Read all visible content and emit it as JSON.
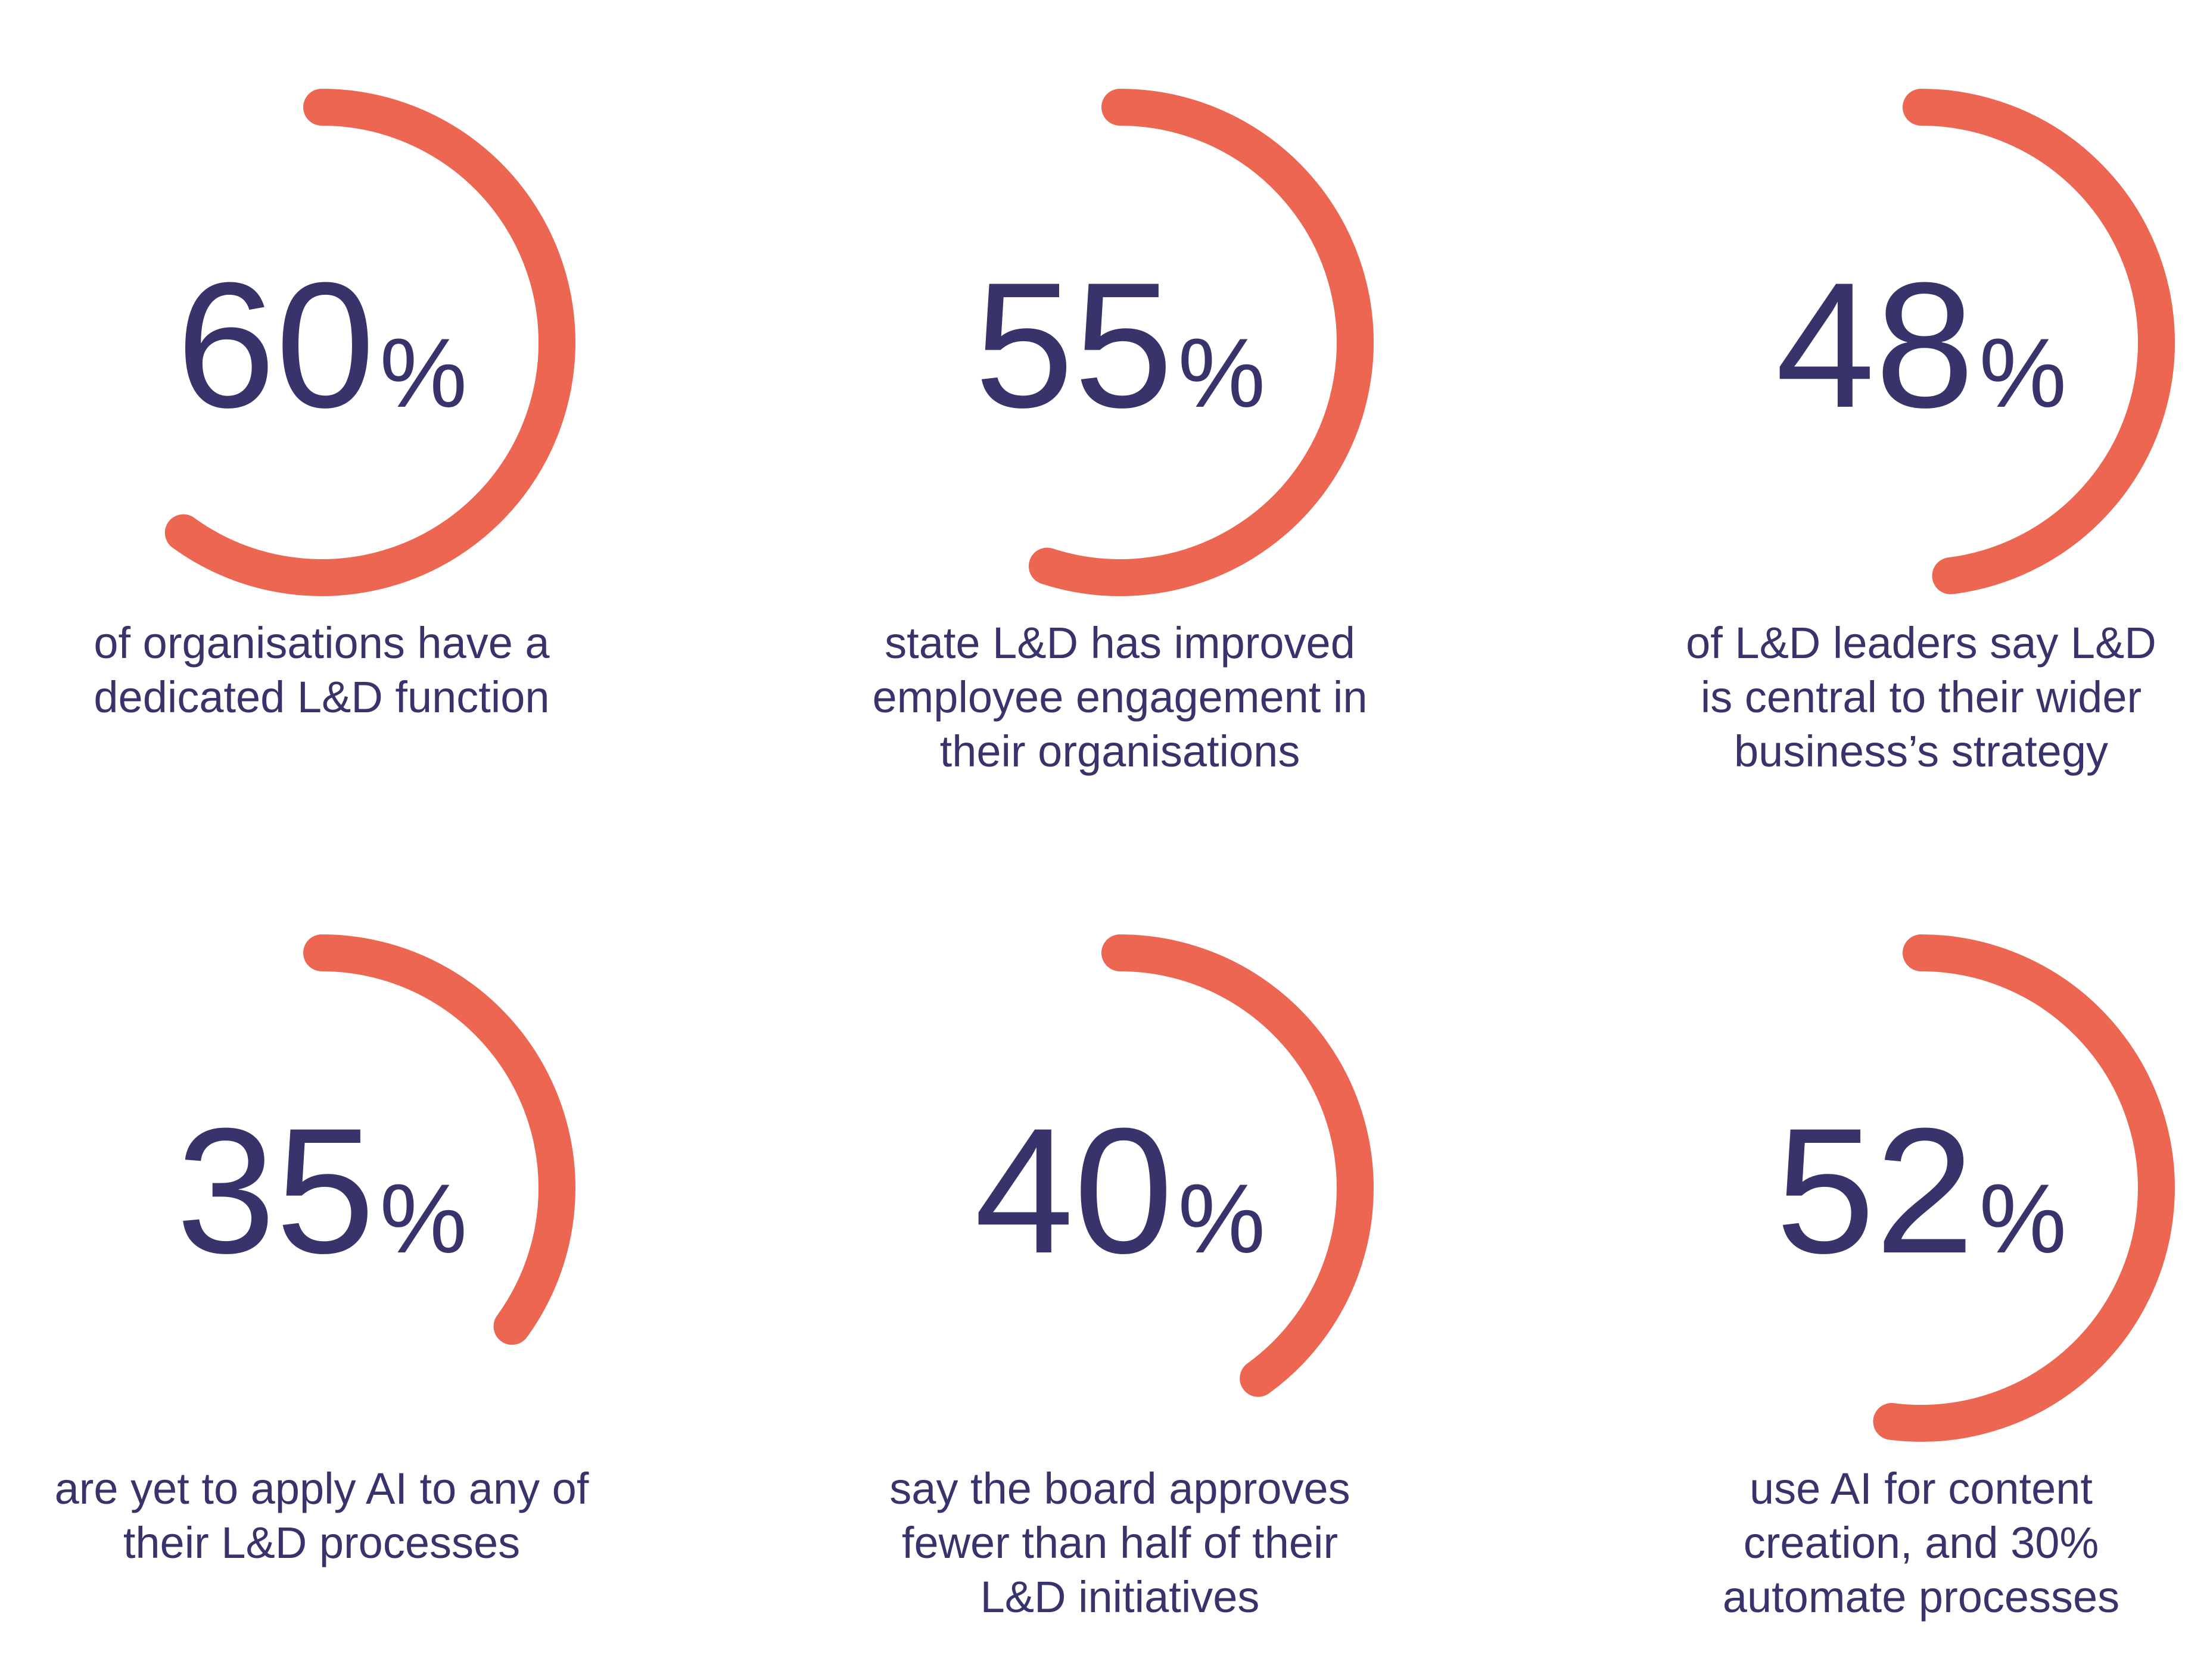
{
  "colors": {
    "arc": "#ec6651",
    "text": "#38346b",
    "background": "#ffffff"
  },
  "chart_data": {
    "type": "radial-progress",
    "unit": "%",
    "stats": [
      {
        "value": 60,
        "caption": [
          "of organisations have a",
          "dedicated L&D function"
        ]
      },
      {
        "value": 55,
        "caption": [
          "state L&D has improved",
          "employee engagement in",
          "their organisations"
        ]
      },
      {
        "value": 48,
        "caption": [
          "of L&D leaders say L&D",
          "is central to their wider",
          "business’s strategy"
        ]
      },
      {
        "value": 35,
        "caption": [
          "are yet to apply AI to any of",
          "their L&D processes"
        ]
      },
      {
        "value": 40,
        "caption": [
          "say the board approves",
          "fewer than half of their",
          "L&D initiatives"
        ]
      },
      {
        "value": 52,
        "caption": [
          "use AI for content",
          "creation, and 30%",
          "automate processes"
        ]
      }
    ]
  }
}
